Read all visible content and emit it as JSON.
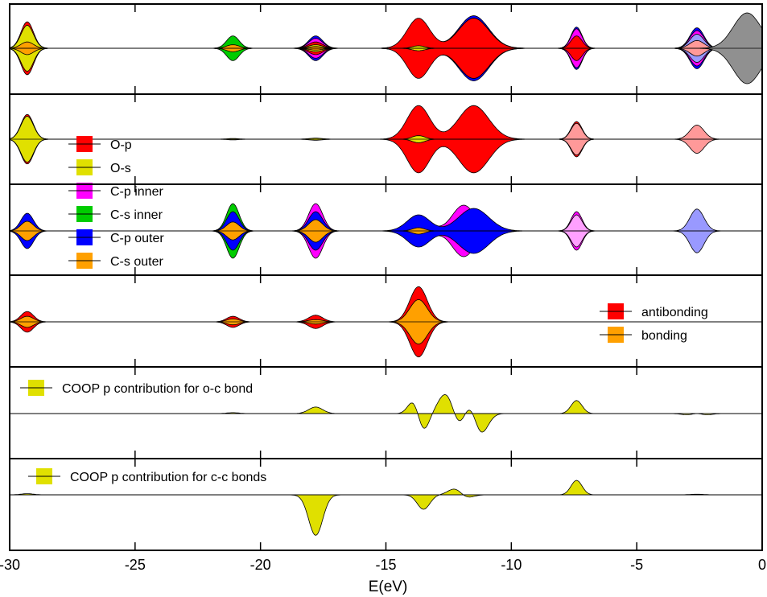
{
  "chart_data": {
    "type": "area",
    "xlabel": "E(eV)",
    "xlim": [
      -30,
      0
    ],
    "x_ticks": [
      -30,
      -25,
      -20,
      -15,
      -10,
      -5,
      0
    ],
    "x_tick_labels": [
      "-30",
      "-25",
      "-20",
      "-15",
      "-10",
      "-5",
      "0"
    ],
    "panels": [
      {
        "id": "p1",
        "legend": [],
        "curves": [
          {
            "fill": "#0000ff",
            "peaks": [
              [
                -29.3,
                0.55,
                0.25
              ],
              [
                -21.1,
                0.3,
                0.25
              ],
              [
                -17.8,
                0.35,
                0.28
              ],
              [
                -13.7,
                0.75,
                0.45
              ],
              [
                -11.5,
                0.92,
                0.6
              ],
              [
                -7.4,
                0.6,
                0.22
              ],
              [
                -2.6,
                0.58,
                0.28
              ]
            ]
          },
          {
            "fill": "#ff00ff",
            "peaks": [
              [
                -29.3,
                0.45,
                0.25
              ],
              [
                -21.1,
                0.22,
                0.25
              ],
              [
                -17.8,
                0.28,
                0.28
              ],
              [
                -13.7,
                0.7,
                0.45
              ],
              [
                -11.5,
                0.85,
                0.6
              ],
              [
                -7.4,
                0.55,
                0.22
              ],
              [
                -2.6,
                0.5,
                0.28
              ]
            ]
          },
          {
            "fill": "#00cc00",
            "peaks": [
              [
                -21.1,
                0.35,
                0.25
              ]
            ]
          },
          {
            "fill": "#ff0000",
            "peaks": [
              [
                -29.3,
                0.75,
                0.25
              ],
              [
                -17.8,
                0.18,
                0.28
              ],
              [
                -13.7,
                0.85,
                0.45
              ],
              [
                -11.5,
                0.85,
                0.6
              ],
              [
                -7.4,
                0.35,
                0.22
              ]
            ]
          },
          {
            "fill": "#9999ff",
            "peaks": [
              [
                -2.6,
                0.4,
                0.28
              ]
            ]
          },
          {
            "fill": "#ff9999",
            "peaks": [
              [
                -2.6,
                0.22,
                0.28
              ]
            ]
          },
          {
            "fill": "#e0e000",
            "peaks": [
              [
                -29.3,
                0.65,
                0.25
              ],
              [
                -17.8,
                0.1,
                0.28
              ],
              [
                -13.7,
                0.07,
                0.25
              ]
            ]
          },
          {
            "fill": "#ffa000",
            "peaks": [
              [
                -29.3,
                0.18,
                0.25
              ],
              [
                -21.1,
                0.1,
                0.25
              ],
              [
                -17.8,
                0.05,
                0.28
              ]
            ]
          },
          {
            "fill": "#909090",
            "peaks": [
              [
                -0.6,
                1.0,
                0.55
              ]
            ]
          }
        ]
      },
      {
        "id": "p2",
        "legend": [],
        "curves": [
          {
            "fill": "#ff0000",
            "peaks": [
              [
                -29.3,
                0.7,
                0.25
              ],
              [
                -13.7,
                0.95,
                0.45
              ],
              [
                -11.5,
                0.95,
                0.6
              ],
              [
                -7.4,
                0.5,
                0.22
              ]
            ]
          },
          {
            "fill": "#ff9999",
            "peaks": [
              [
                -7.4,
                0.45,
                0.22
              ],
              [
                -2.6,
                0.4,
                0.28
              ]
            ]
          },
          {
            "fill": "#e0e000",
            "peaks": [
              [
                -29.3,
                0.65,
                0.25
              ],
              [
                -13.7,
                0.1,
                0.25
              ],
              [
                -21.1,
                0.02,
                0.25
              ],
              [
                -17.8,
                0.03,
                0.28
              ]
            ]
          }
        ]
      },
      {
        "id": "p3",
        "legend": [
          {
            "label": "O-p",
            "color": "#ff0000"
          },
          {
            "label": "O-s",
            "color": "#e0e000"
          },
          {
            "label": "C-p inner",
            "color": "#ff00ff"
          },
          {
            "label": "C-s inner",
            "color": "#00cc00"
          },
          {
            "label": "C-p outer",
            "color": "#0000ff"
          },
          {
            "label": "C-s outer",
            "color": "#ffa000"
          }
        ],
        "curves": [
          {
            "fill": "#ff00ff",
            "peaks": [
              [
                -17.8,
                0.85,
                0.28
              ],
              [
                -13.7,
                0.4,
                0.45
              ],
              [
                -11.9,
                0.8,
                0.45
              ],
              [
                -7.4,
                0.6,
                0.22
              ]
            ]
          },
          {
            "fill": "#00cc00",
            "peaks": [
              [
                -21.1,
                0.85,
                0.25
              ]
            ]
          },
          {
            "fill": "#0000ff",
            "peaks": [
              [
                -29.3,
                0.55,
                0.25
              ],
              [
                -21.1,
                0.6,
                0.25
              ],
              [
                -17.8,
                0.6,
                0.28
              ],
              [
                -13.7,
                0.5,
                0.45
              ],
              [
                -11.5,
                0.7,
                0.6
              ],
              [
                -7.4,
                0.1,
                0.22
              ]
            ]
          },
          {
            "fill": "#ffa0ff",
            "peaks": [
              [
                -7.4,
                0.5,
                0.22
              ]
            ]
          },
          {
            "fill": "#9999ff",
            "peaks": [
              [
                -2.6,
                0.68,
                0.28
              ]
            ]
          },
          {
            "fill": "#ffa000",
            "peaks": [
              [
                -29.3,
                0.3,
                0.25
              ],
              [
                -21.1,
                0.28,
                0.25
              ],
              [
                -17.8,
                0.35,
                0.28
              ],
              [
                -13.7,
                0.1,
                0.25
              ]
            ]
          }
        ]
      },
      {
        "id": "p4",
        "legend": [
          {
            "label": "antibonding",
            "color": "#ff0000"
          },
          {
            "label": "bonding",
            "color": "#ffa000"
          }
        ],
        "curves": [
          {
            "fill": "#ff0000",
            "peaks": [
              [
                -29.3,
                0.28,
                0.25
              ],
              [
                -21.1,
                0.15,
                0.25
              ],
              [
                -17.8,
                0.18,
                0.28
              ],
              [
                -13.7,
                0.95,
                0.35
              ]
            ]
          },
          {
            "fill": "#ffa000",
            "peaks": [
              [
                -29.3,
                0.15,
                0.25
              ],
              [
                -21.1,
                0.08,
                0.25
              ],
              [
                -17.8,
                0.06,
                0.28
              ],
              [
                -13.7,
                0.6,
                0.35
              ]
            ]
          }
        ]
      },
      {
        "id": "p5",
        "legend": [
          {
            "label": "COOP p contribution for o-c bond",
            "color": "#e0e000"
          }
        ],
        "curves": [
          {
            "fill": "#e0e000",
            "peaks": [
              [
                -17.8,
                0.15,
                0.28
              ],
              [
                -13.9,
                0.3,
                0.22
              ],
              [
                -13.5,
                -0.4,
                0.22
              ],
              [
                -12.5,
                0.6,
                0.35
              ],
              [
                -12.1,
                -0.6,
                0.3
              ],
              [
                -11.6,
                0.6,
                0.3
              ],
              [
                -11.3,
                -0.7,
                0.3
              ],
              [
                -7.4,
                0.3,
                0.22
              ],
              [
                -21.1,
                0.02,
                0.25
              ]
            ]
          },
          {
            "fill": "#ffffa0",
            "peaks": [
              [
                -2.6,
                0.6,
                0.28
              ],
              [
                -2.6,
                -0.6,
                0.3
              ]
            ]
          }
        ]
      },
      {
        "id": "p6",
        "legend": [
          {
            "label": "COOP p contribution for c-c bonds",
            "color": "#e0e000"
          }
        ],
        "curves": [
          {
            "fill": "#e0e000",
            "peaks": [
              [
                -17.8,
                -0.7,
                0.28
              ],
              [
                -13.5,
                -0.25,
                0.25
              ],
              [
                -12.1,
                0.35,
                0.3
              ],
              [
                -12.0,
                -0.3,
                0.3
              ],
              [
                -7.4,
                0.25,
                0.22
              ],
              [
                -29.3,
                0.02,
                0.25
              ],
              [
                -2.6,
                0.01,
                0.28
              ]
            ]
          }
        ]
      }
    ]
  }
}
